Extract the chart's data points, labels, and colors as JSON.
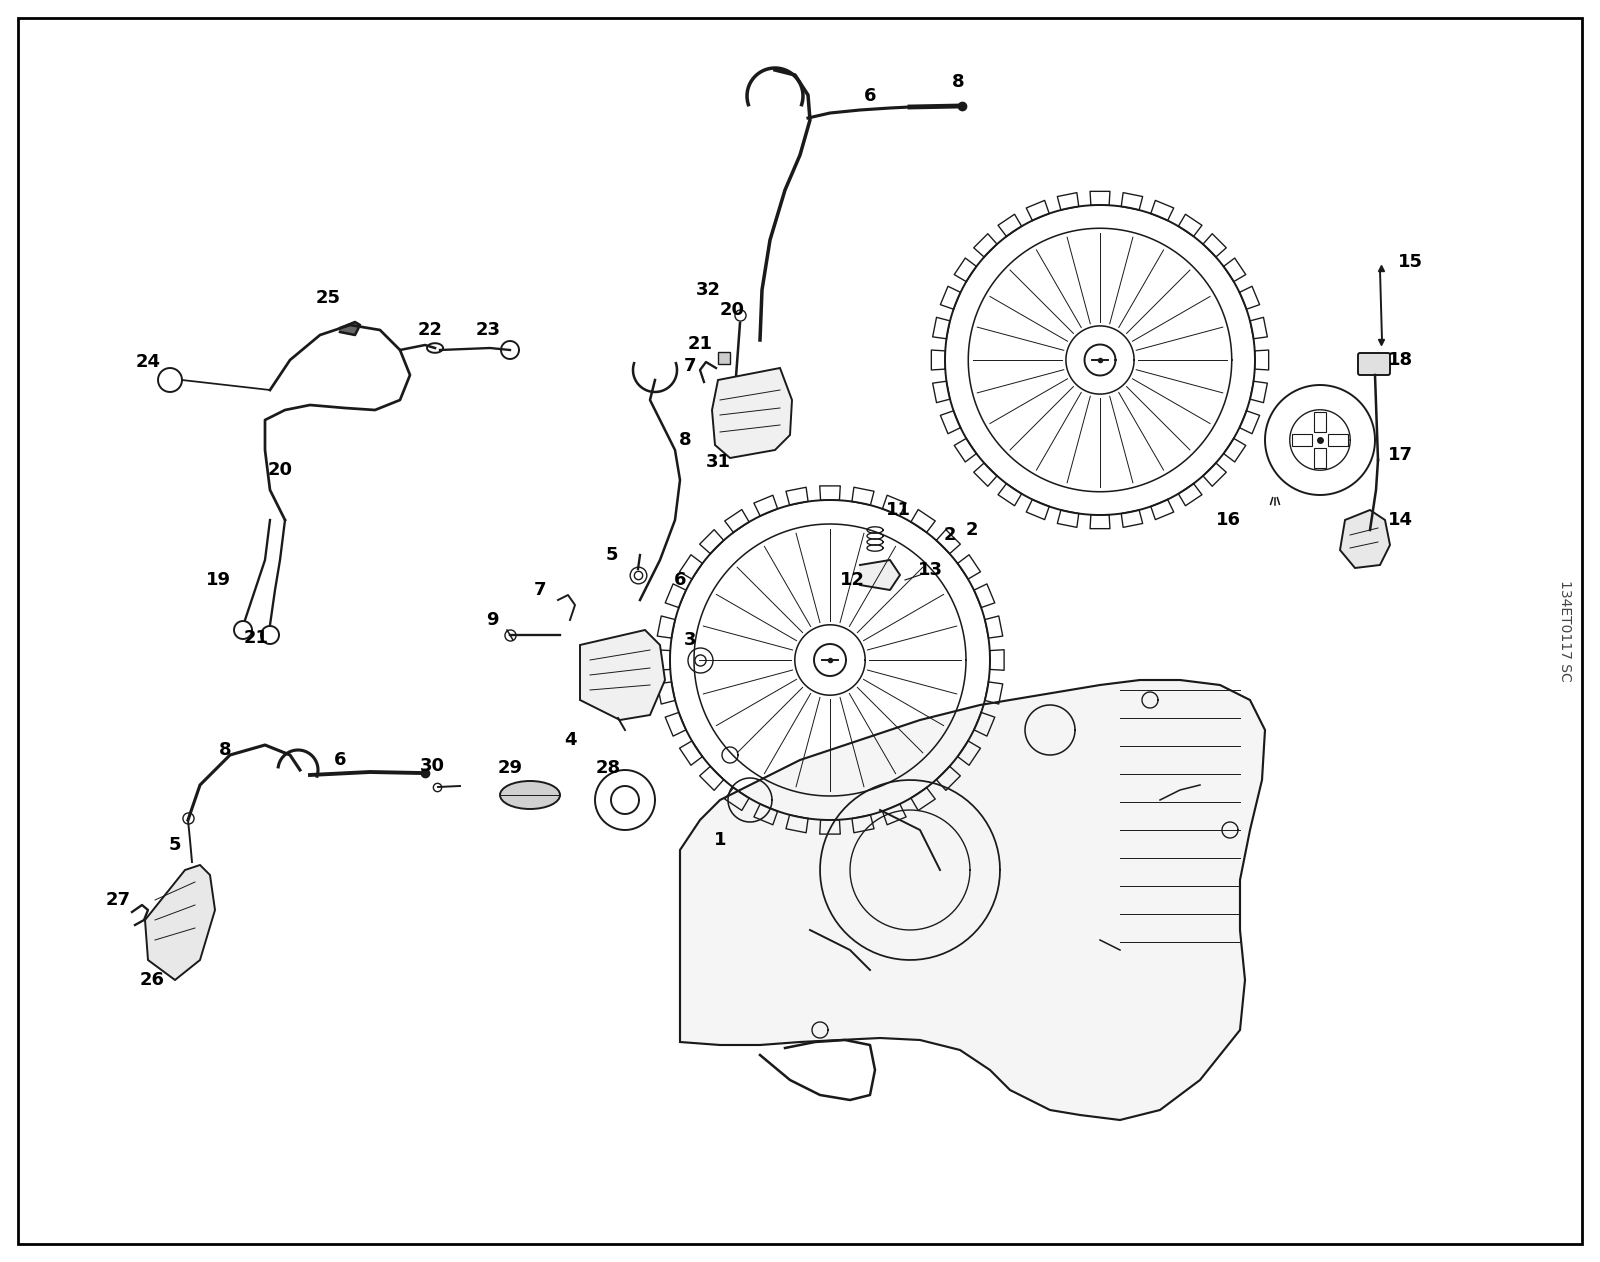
{
  "bg_color": "#ffffff",
  "border_color": "#000000",
  "text_color": "#000000",
  "watermark": "134ET0117 SC",
  "figure_width": 16.0,
  "figure_height": 12.62,
  "lc": "#1a1a1a",
  "lw": 1.4
}
